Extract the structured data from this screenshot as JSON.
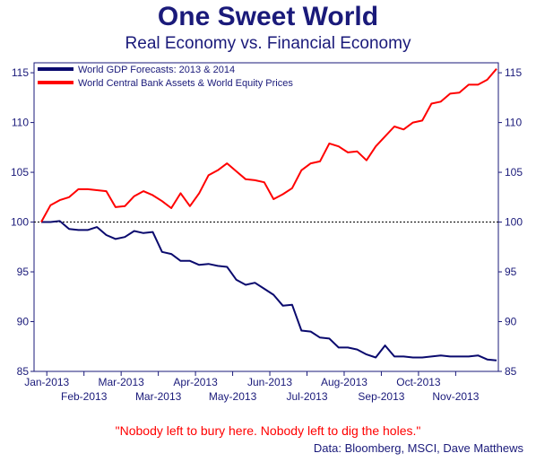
{
  "header": {
    "title": "One Sweet World",
    "subtitle": "Real Economy vs. Financial Economy"
  },
  "footer": {
    "quote": "\"Nobody left to bury here.  Nobody left to dig the holes.\"",
    "source": "Data: Bloomberg, MSCI, Dave Matthews"
  },
  "colors": {
    "axis": "#1a1a7a",
    "gdp": "#0a0a6e",
    "assets": "#ff0000",
    "baseline": "#000000"
  },
  "chart_data": {
    "type": "line",
    "title": "One Sweet World",
    "subtitle": "Real Economy vs. Financial Economy",
    "ylim": [
      85,
      116
    ],
    "y_ticks": [
      85,
      90,
      95,
      100,
      105,
      110,
      115
    ],
    "xlim": [
      0,
      49
    ],
    "x_ticks_upper": [
      {
        "label": "Jan-2013",
        "x": 0.6
      },
      {
        "label": "Mar-2013",
        "x": 8.6
      },
      {
        "label": "Apr-2013",
        "x": 16.6
      },
      {
        "label": "Jun-2013",
        "x": 24.6
      },
      {
        "label": "Aug-2013",
        "x": 32.6
      },
      {
        "label": "Oct-2013",
        "x": 40.6
      }
    ],
    "x_ticks_lower": [
      {
        "label": "Feb-2013",
        "x": 4.6
      },
      {
        "label": "Mar-2013",
        "x": 12.6
      },
      {
        "label": "May-2013",
        "x": 20.6
      },
      {
        "label": "Jul-2013",
        "x": 28.6
      },
      {
        "label": "Sep-2013",
        "x": 36.6
      },
      {
        "label": "Nov-2013",
        "x": 44.6
      }
    ],
    "reference_line": {
      "y": 100,
      "style": "dotted"
    },
    "legend_position": "top-left",
    "grid": false,
    "series": [
      {
        "name": "World GDP Forecasts: 2013 & 2014",
        "color": "#0a0a6e",
        "points": [
          [
            0,
            100.0
          ],
          [
            1,
            100.0
          ],
          [
            2,
            100.1
          ],
          [
            3,
            99.3
          ],
          [
            4,
            99.2
          ],
          [
            5,
            99.2
          ],
          [
            6,
            99.5
          ],
          [
            7,
            98.7
          ],
          [
            8,
            98.3
          ],
          [
            9,
            98.5
          ],
          [
            10,
            99.1
          ],
          [
            11,
            98.9
          ],
          [
            12,
            99.0
          ],
          [
            13,
            97.0
          ],
          [
            14,
            96.8
          ],
          [
            15,
            96.1
          ],
          [
            16,
            96.1
          ],
          [
            17,
            95.7
          ],
          [
            18,
            95.8
          ],
          [
            19,
            95.6
          ],
          [
            20,
            95.5
          ],
          [
            21,
            94.2
          ],
          [
            22,
            93.7
          ],
          [
            23,
            93.9
          ],
          [
            24,
            93.3
          ],
          [
            25,
            92.7
          ],
          [
            26,
            91.6
          ],
          [
            27,
            91.7
          ],
          [
            28,
            89.1
          ],
          [
            29,
            89.0
          ],
          [
            30,
            88.4
          ],
          [
            31,
            88.3
          ],
          [
            32,
            87.4
          ],
          [
            33,
            87.4
          ],
          [
            34,
            87.2
          ],
          [
            35,
            86.7
          ],
          [
            36,
            86.4
          ],
          [
            37,
            87.6
          ],
          [
            38,
            86.5
          ],
          [
            39,
            86.5
          ],
          [
            40,
            86.4
          ],
          [
            41,
            86.4
          ],
          [
            42,
            86.5
          ],
          [
            43,
            86.6
          ],
          [
            44,
            86.5
          ],
          [
            45,
            86.5
          ],
          [
            46,
            86.5
          ],
          [
            47,
            86.6
          ],
          [
            48,
            86.2
          ],
          [
            49,
            86.1
          ]
        ]
      },
      {
        "name": "World Central Bank Assets & World Equity Prices",
        "color": "#ff0000",
        "points": [
          [
            0,
            100.0
          ],
          [
            1,
            101.7
          ],
          [
            2,
            102.2
          ],
          [
            3,
            102.5
          ],
          [
            4,
            103.3
          ],
          [
            5,
            103.3
          ],
          [
            6,
            103.2
          ],
          [
            7,
            103.1
          ],
          [
            8,
            101.5
          ],
          [
            9,
            101.6
          ],
          [
            10,
            102.6
          ],
          [
            11,
            103.1
          ],
          [
            12,
            102.7
          ],
          [
            13,
            102.1
          ],
          [
            14,
            101.4
          ],
          [
            15,
            102.9
          ],
          [
            16,
            101.6
          ],
          [
            17,
            102.9
          ],
          [
            18,
            104.7
          ],
          [
            19,
            105.2
          ],
          [
            20,
            105.9
          ],
          [
            21,
            105.1
          ],
          [
            22,
            104.3
          ],
          [
            23,
            104.2
          ],
          [
            24,
            104.0
          ],
          [
            25,
            102.3
          ],
          [
            26,
            102.8
          ],
          [
            27,
            103.4
          ],
          [
            28,
            105.2
          ],
          [
            29,
            105.9
          ],
          [
            30,
            106.1
          ],
          [
            31,
            107.9
          ],
          [
            32,
            107.6
          ],
          [
            33,
            107.0
          ],
          [
            34,
            107.1
          ],
          [
            35,
            106.2
          ],
          [
            36,
            107.6
          ],
          [
            37,
            108.6
          ],
          [
            38,
            109.6
          ],
          [
            39,
            109.3
          ],
          [
            40,
            110.0
          ],
          [
            41,
            110.2
          ],
          [
            42,
            111.9
          ],
          [
            43,
            112.1
          ],
          [
            44,
            112.9
          ],
          [
            45,
            113.0
          ],
          [
            46,
            113.8
          ],
          [
            47,
            113.8
          ],
          [
            48,
            114.3
          ],
          [
            49,
            115.4
          ]
        ]
      }
    ]
  }
}
